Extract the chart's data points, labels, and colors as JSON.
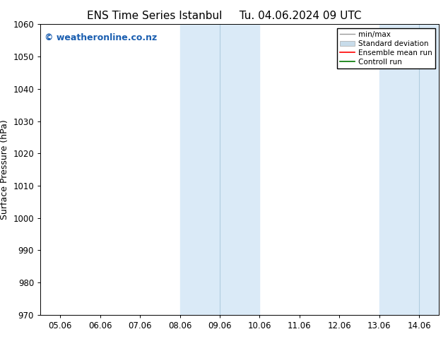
{
  "title1": "ENS Time Series Istanbul",
  "title2": "Tu. 04.06.2024 09 UTC",
  "ylabel": "Surface Pressure (hPa)",
  "ylim": [
    970,
    1060
  ],
  "yticks": [
    970,
    980,
    990,
    1000,
    1010,
    1020,
    1030,
    1040,
    1050,
    1060
  ],
  "xtick_labels": [
    "05.06",
    "06.06",
    "07.06",
    "08.06",
    "09.06",
    "10.06",
    "11.06",
    "12.06",
    "13.06",
    "14.06"
  ],
  "xtick_positions": [
    0,
    1,
    2,
    3,
    4,
    5,
    6,
    7,
    8,
    9
  ],
  "xlim": [
    -0.5,
    9.5
  ],
  "shade_regions": [
    {
      "xmin": 3.0,
      "xmax": 3.5
    },
    {
      "xmin": 3.5,
      "xmax": 5.0
    },
    {
      "xmin": 8.5,
      "xmax": 9.5
    }
  ],
  "shade_colors": [
    "#daeaf7",
    "#daeaf7",
    "#daeaf7"
  ],
  "divider_lines": [
    3.5
  ],
  "background_color": "#ffffff",
  "watermark_text": "© weatheronline.co.nz",
  "watermark_color": "#1a5eb0",
  "legend_labels": [
    "min/max",
    "Standard deviation",
    "Ensemble mean run",
    "Controll run"
  ],
  "legend_colors": [
    "#999999",
    "#c8dcea",
    "#ff0000",
    "#007700"
  ],
  "legend_lws": [
    1.0,
    5,
    1.2,
    1.2
  ],
  "title_fontsize": 11,
  "ylabel_fontsize": 9,
  "tick_fontsize": 8.5,
  "watermark_fontsize": 9
}
